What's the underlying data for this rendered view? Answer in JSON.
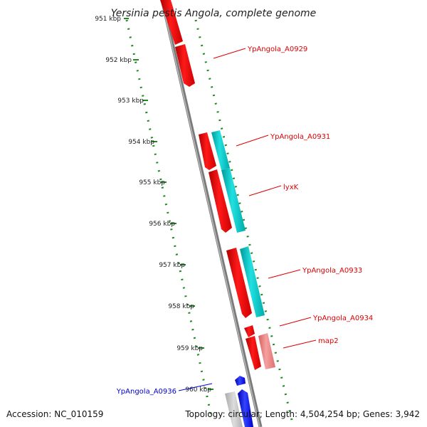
{
  "title": "Yersinia pestis Angola, complete genome",
  "ticks": [
    "951 kbp",
    "952 kbp",
    "953 kbp",
    "954 kbp",
    "955 kbp",
    "956 kbp",
    "957 kbp",
    "958 kbp",
    "959 kbp",
    "960 kbp"
  ],
  "gene_labels": [
    {
      "text": "YpAngola_A0929",
      "color": "#dd0000"
    },
    {
      "text": "YpAngola_A0931",
      "color": "#dd0000"
    },
    {
      "text": "lyxK",
      "color": "#dd0000"
    },
    {
      "text": "YpAngola_A0933",
      "color": "#dd0000"
    },
    {
      "text": "YpAngola_A0934",
      "color": "#dd0000"
    },
    {
      "text": "map2",
      "color": "#dd0000"
    },
    {
      "text": "YpAngola_A0936",
      "color": "#0000cc"
    }
  ],
  "footer": {
    "accession": "Accession: NC_010159",
    "topology": "Topology: circular; Length: 4,504,254 bp; Genes: 3,942"
  },
  "colors": {
    "cds_forward": "#ff0000",
    "cds_reverse": "#0000ff",
    "rna": "#00bbbb",
    "pseudo": "#f08080",
    "backbone": "#808080",
    "ticks": "#228822"
  }
}
